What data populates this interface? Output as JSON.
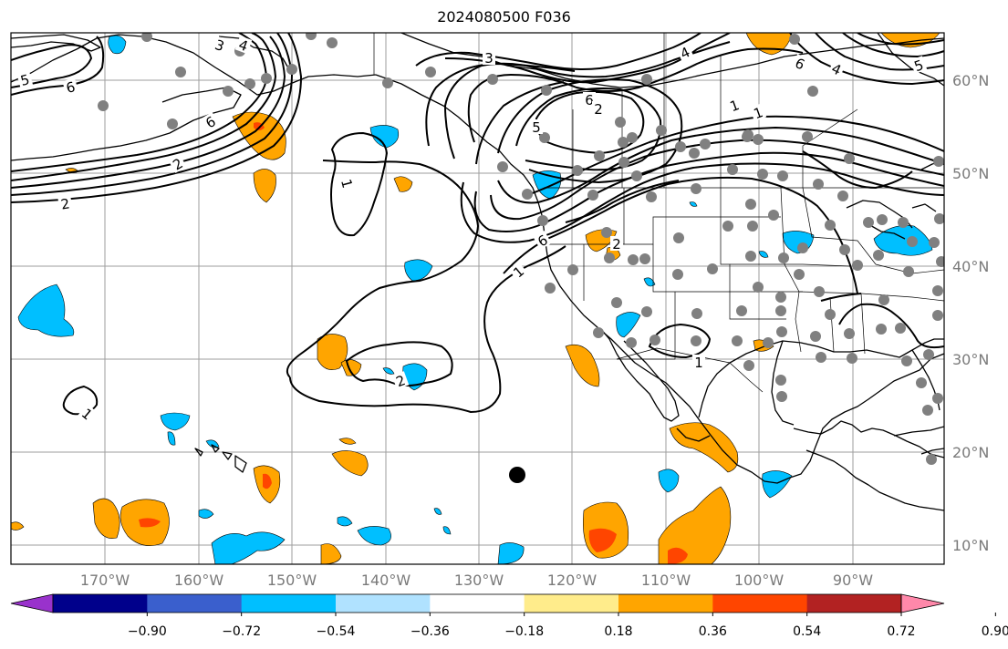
{
  "title": "2024080500 F036",
  "lon_labels": [
    "170°W",
    "160°W",
    "150°W",
    "140°W",
    "130°W",
    "120°W",
    "110°W",
    "100°W",
    "90°W"
  ],
  "lat_labels": [
    "60°N",
    "50°N",
    "40°N",
    "30°N",
    "20°N",
    "10°N"
  ],
  "contour_labels": [
    "5",
    "6",
    "3",
    "4",
    "6",
    "2",
    "2",
    "1",
    "2",
    "1",
    "6",
    "4",
    "6",
    "2",
    "5",
    "1",
    "1",
    "3",
    "2",
    "6",
    "4",
    "5",
    "1",
    "1"
  ],
  "colorbar": {
    "ticks": [
      "−0.90",
      "−0.72",
      "−0.54",
      "−0.36",
      "−0.18",
      "0.18",
      "0.36",
      "0.54",
      "0.72",
      "0.90"
    ],
    "colors": [
      "#9932cc",
      "#00008b",
      "#3a5fcd",
      "#00bfff",
      "#b0e2ff",
      "#ffffff",
      "#ffec8b",
      "#ffa500",
      "#ff4500",
      "#b22222",
      "#ff88aa"
    ]
  }
}
